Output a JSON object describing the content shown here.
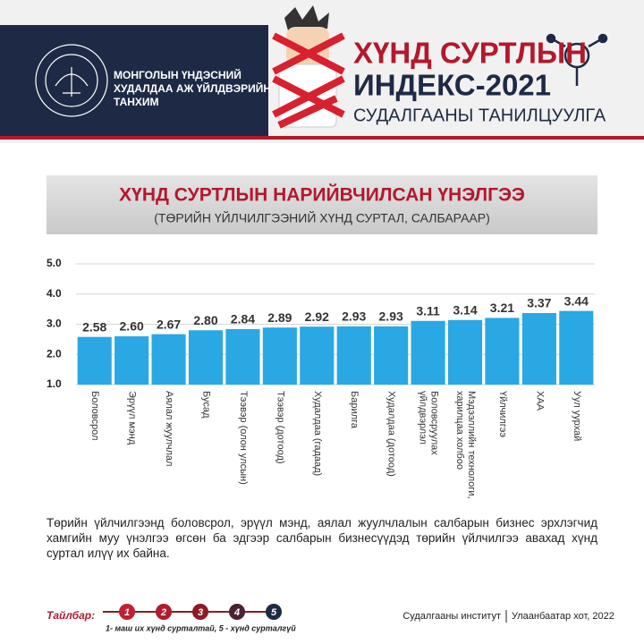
{
  "header": {
    "org": [
      "МОНГОЛЫН ҮНДЭСНИЙ",
      "ХУДАЛДАА АЖ ҮЙЛДВЭРИЙН",
      "ТАНХИМ"
    ],
    "title": [
      "ХҮНД СУРТЛЫН",
      "ИНДЕКС-2021"
    ],
    "subtitle": "СУДАЛГААНЫ ТАНИЛЦУУЛГА"
  },
  "chart_data": {
    "type": "bar",
    "title": "ХҮНД СУРТЛЫН НАРИЙВЧИЛСАН ҮНЭЛГЭЭ",
    "subtitle": "(ТӨРИЙН ҮЙЛЧИЛГЭЭНИЙ ХҮНД СУРТАЛ, САЛБАРААР)",
    "categories": [
      "Боловсрол",
      "Эрүүл мэнд",
      "Аялал жуулчлал",
      "Бусад",
      "Тээвэр (олон улсын)",
      "Тээвэр (дотоод)",
      "Худалдаа (гадаад)",
      "Барилга",
      "Худалдаа (дотоод)",
      "Боловсруулах үйлдвэрлэл",
      "Мэдээллийн технологи, харилцаа холбоо",
      "Үйлчилгээ",
      "ХАА",
      "Уул уурхай"
    ],
    "values": [
      2.58,
      2.6,
      2.67,
      2.8,
      2.84,
      2.89,
      2.92,
      2.93,
      2.93,
      3.11,
      3.14,
      3.21,
      3.37,
      3.44
    ],
    "value_labels": [
      "2.58",
      "2.60",
      "2.67",
      "2.80",
      "2.84",
      "2.89",
      "2.92",
      "2.93",
      "2.93",
      "3.11",
      "3.14",
      "3.21",
      "3.37",
      "3.44"
    ],
    "color": "#29a8e4",
    "ylim": [
      1,
      5
    ],
    "yticks": [
      {
        "value": 1,
        "label": "1.0"
      },
      {
        "value": 2,
        "label": "2.0"
      },
      {
        "value": 3,
        "label": "3.0"
      },
      {
        "value": 4,
        "label": "4.0"
      },
      {
        "value": 5,
        "label": "5.0"
      }
    ],
    "grid": true
  },
  "note": "Төрийн үйлчилгээнд боловсрол, эрүүл мэнд, аялал жуулчлалын салбарын бизнес эрхлэгчид хамгийн муу үнэлгээ өгсөн ба эдгээр салбарын бизнесүүдэд төрийн үйлчилгээ авахад хүнд суртал илүү их байна.",
  "legend": {
    "label": "Тайлбар:",
    "scale": [
      1,
      2,
      3,
      4,
      5
    ],
    "text": "1- маш их хүнд сурталтай, 5 - хүнд сурталгүй"
  },
  "footer": {
    "source": "Судалгааны институт",
    "place": "Улаанбаатар хот, 2022"
  }
}
